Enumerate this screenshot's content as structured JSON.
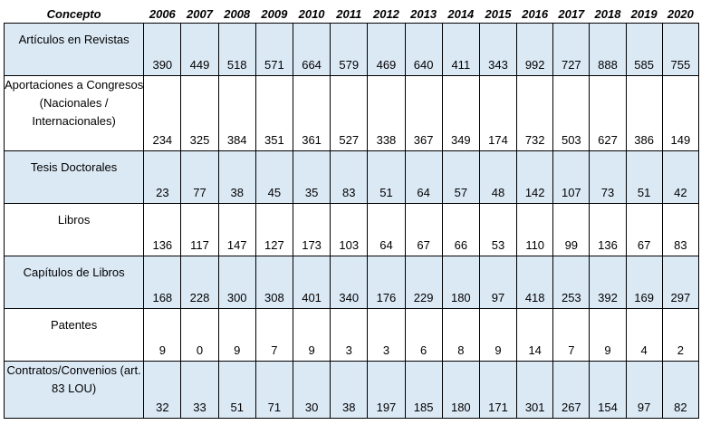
{
  "header": {
    "concept": "Concepto",
    "years": [
      "2006",
      "2007",
      "2008",
      "2009",
      "2010",
      "2011",
      "2012",
      "2013",
      "2014",
      "2015",
      "2016",
      "2017",
      "2018",
      "2019",
      "2020"
    ]
  },
  "rows": [
    {
      "label": "Artículos en Revistas",
      "values": [
        "390",
        "449",
        "518",
        "571",
        "664",
        "579",
        "469",
        "640",
        "411",
        "343",
        "992",
        "727",
        "888",
        "585",
        "755"
      ]
    },
    {
      "label": "Aportaciones a Congresos (Nacionales / Internacionales)",
      "values": [
        "234",
        "325",
        "384",
        "351",
        "361",
        "527",
        "338",
        "367",
        "349",
        "174",
        "732",
        "503",
        "627",
        "386",
        "149"
      ]
    },
    {
      "label": "Tesis Doctorales",
      "values": [
        "23",
        "77",
        "38",
        "45",
        "35",
        "83",
        "51",
        "64",
        "57",
        "48",
        "142",
        "107",
        "73",
        "51",
        "42"
      ]
    },
    {
      "label": "Libros",
      "values": [
        "136",
        "117",
        "147",
        "127",
        "173",
        "103",
        "64",
        "67",
        "66",
        "53",
        "110",
        "99",
        "136",
        "67",
        "83"
      ]
    },
    {
      "label": "Capítulos de Libros",
      "values": [
        "168",
        "228",
        "300",
        "308",
        "401",
        "340",
        "176",
        "229",
        "180",
        "97",
        "418",
        "253",
        "392",
        "169",
        "297"
      ]
    },
    {
      "label": "Patentes",
      "values": [
        "9",
        "0",
        "9",
        "7",
        "9",
        "3",
        "3",
        "6",
        "8",
        "9",
        "14",
        "7",
        "9",
        "4",
        "2"
      ]
    },
    {
      "label": "Contratos/Convenios (art. 83 LOU)",
      "values": [
        "32",
        "33",
        "51",
        "71",
        "30",
        "38",
        "197",
        "185",
        "180",
        "171",
        "301",
        "267",
        "154",
        "97",
        "82"
      ]
    }
  ],
  "colors": {
    "shaded_row": "#dbe9f5",
    "plain_row": "#ffffff",
    "border": "#000000"
  }
}
